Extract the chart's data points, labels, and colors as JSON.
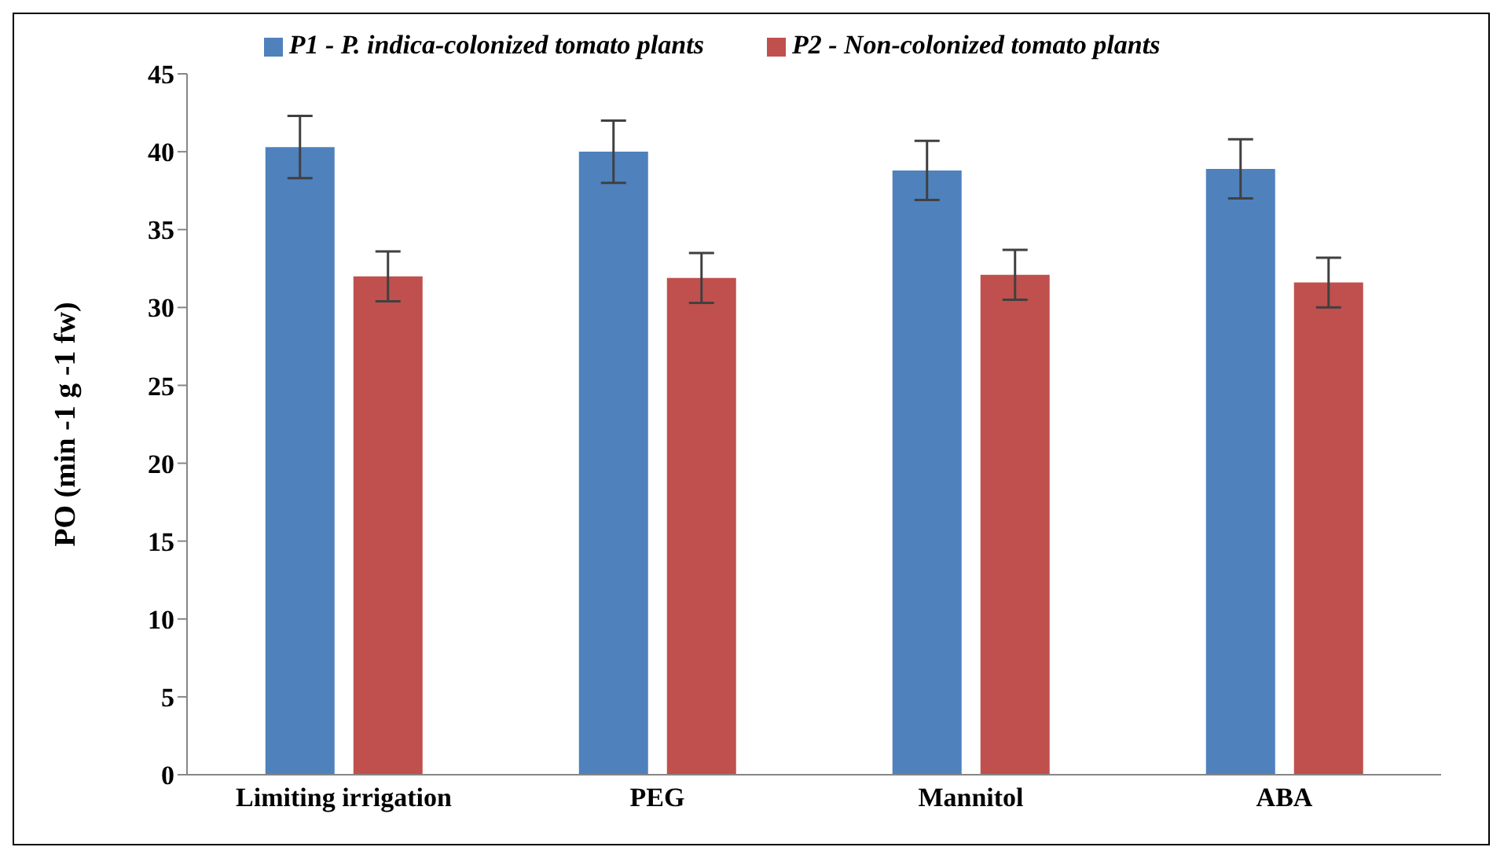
{
  "chart_data": {
    "type": "bar",
    "ylabel": "PO (min -1 g -1 fw)",
    "categories": [
      "Limiting irrigation",
      "PEG",
      "Mannitol",
      "ABA"
    ],
    "series": [
      {
        "name": "P1 - P. indica-colonized tomato plants",
        "color": "#4f81bd",
        "values": [
          40.3,
          40.0,
          38.8,
          38.9
        ],
        "errors": [
          2,
          2,
          1.9,
          1.9
        ]
      },
      {
        "name": "P2 - Non-colonized tomato plants",
        "color": "#c0504d",
        "values": [
          32.0,
          31.9,
          32.1,
          31.6
        ],
        "errors": [
          1.6,
          1.6,
          1.6,
          1.6
        ]
      }
    ],
    "ylim": [
      0,
      45
    ],
    "yticks": [
      0,
      5,
      10,
      15,
      20,
      25,
      30,
      35,
      40,
      45
    ],
    "grid": false,
    "legend": "top"
  }
}
